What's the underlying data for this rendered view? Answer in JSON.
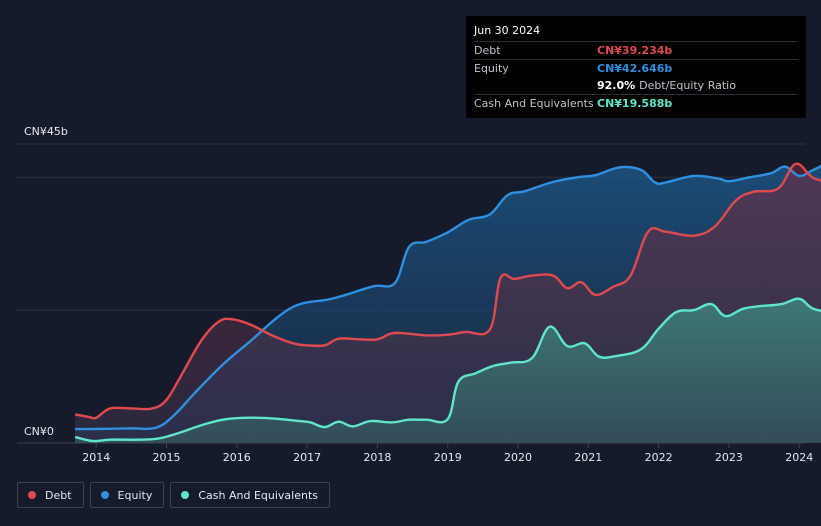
{
  "colors": {
    "background": "#151b2b",
    "debt": "#e04a4f",
    "equity": "#2f8fe0",
    "cash": "#5ee6cc",
    "grid": "#2c3240"
  },
  "tooltip": {
    "date": "Jun 30 2024",
    "rows": [
      {
        "label": "Debt",
        "value": "CN¥39.234b"
      },
      {
        "label": "Equity",
        "value": "CN¥42.646b"
      },
      {
        "label": "",
        "value": "92.0%",
        "extra": "Debt/Equity Ratio"
      },
      {
        "label": "Cash And Equivalents",
        "value": "CN¥19.588b"
      }
    ]
  },
  "legend": [
    {
      "name": "Debt",
      "color": "#e04a4f"
    },
    {
      "name": "Equity",
      "color": "#2f8fe0"
    },
    {
      "name": "Cash And Equivalents",
      "color": "#5ee6cc"
    }
  ],
  "chart_data": {
    "type": "area",
    "ylim": [
      0,
      45
    ],
    "y_tick_labels": {
      "top": "CN¥45b",
      "bottom": "CN¥0"
    },
    "x_ticks": [
      2014,
      2015,
      2016,
      2017,
      2018,
      2019,
      2020,
      2021,
      2022,
      2023,
      2024
    ],
    "xlim": [
      2013.3,
      2024.5
    ],
    "series": [
      {
        "name": "Debt",
        "points": [
          [
            2013.7,
            4.3
          ],
          [
            2013.9,
            3.9
          ],
          [
            2014.0,
            3.8
          ],
          [
            2014.2,
            5.2
          ],
          [
            2014.5,
            5.2
          ],
          [
            2014.8,
            5.2
          ],
          [
            2015.0,
            6.5
          ],
          [
            2015.2,
            10
          ],
          [
            2015.5,
            15.5
          ],
          [
            2015.75,
            18.3
          ],
          [
            2015.95,
            18.6
          ],
          [
            2016.2,
            17.8
          ],
          [
            2016.5,
            16.2
          ],
          [
            2016.8,
            15
          ],
          [
            2017.0,
            14.7
          ],
          [
            2017.25,
            14.7
          ],
          [
            2017.45,
            15.7
          ],
          [
            2017.75,
            15.6
          ],
          [
            2018.0,
            15.6
          ],
          [
            2018.2,
            16.5
          ],
          [
            2018.4,
            16.5
          ],
          [
            2018.7,
            16.2
          ],
          [
            2019.0,
            16.3
          ],
          [
            2019.25,
            16.7
          ],
          [
            2019.6,
            17.1
          ],
          [
            2019.75,
            24.8
          ],
          [
            2019.95,
            24.7
          ],
          [
            2020.2,
            25.2
          ],
          [
            2020.5,
            25.2
          ],
          [
            2020.7,
            23.3
          ],
          [
            2020.9,
            24.2
          ],
          [
            2021.1,
            22.3
          ],
          [
            2021.35,
            23.5
          ],
          [
            2021.6,
            25.2
          ],
          [
            2021.85,
            31.8
          ],
          [
            2022.1,
            31.8
          ],
          [
            2022.5,
            31.2
          ],
          [
            2022.8,
            32.6
          ],
          [
            2023.1,
            36.5
          ],
          [
            2023.35,
            37.8
          ],
          [
            2023.7,
            38.3
          ],
          [
            2023.95,
            42
          ],
          [
            2024.2,
            39.9
          ],
          [
            2024.5,
            39.234
          ]
        ]
      },
      {
        "name": "Equity",
        "points": [
          [
            2013.7,
            2.1
          ],
          [
            2014.0,
            2.1
          ],
          [
            2014.5,
            2.2
          ],
          [
            2014.85,
            2.3
          ],
          [
            2015.1,
            4.1
          ],
          [
            2015.4,
            7.5
          ],
          [
            2015.8,
            11.8
          ],
          [
            2016.2,
            15.4
          ],
          [
            2016.6,
            19.1
          ],
          [
            2016.9,
            20.9
          ],
          [
            2017.3,
            21.6
          ],
          [
            2017.55,
            22.3
          ],
          [
            2017.95,
            23.6
          ],
          [
            2018.25,
            24.1
          ],
          [
            2018.45,
            29.5
          ],
          [
            2018.7,
            30.3
          ],
          [
            2019.0,
            31.7
          ],
          [
            2019.3,
            33.6
          ],
          [
            2019.6,
            34.4
          ],
          [
            2019.85,
            37.3
          ],
          [
            2020.1,
            37.9
          ],
          [
            2020.5,
            39.3
          ],
          [
            2020.85,
            40
          ],
          [
            2021.1,
            40.3
          ],
          [
            2021.45,
            41.5
          ],
          [
            2021.75,
            41.1
          ],
          [
            2021.95,
            39.2
          ],
          [
            2022.1,
            39.2
          ],
          [
            2022.5,
            40.2
          ],
          [
            2022.85,
            39.8
          ],
          [
            2023.0,
            39.4
          ],
          [
            2023.3,
            40
          ],
          [
            2023.6,
            40.6
          ],
          [
            2023.8,
            41.6
          ],
          [
            2024.0,
            40.2
          ],
          [
            2024.2,
            41.1
          ],
          [
            2024.5,
            42.646
          ]
        ]
      },
      {
        "name": "Cash And Equivalents",
        "points": [
          [
            2013.7,
            0.9
          ],
          [
            2013.95,
            0.3
          ],
          [
            2014.2,
            0.5
          ],
          [
            2014.6,
            0.5
          ],
          [
            2014.9,
            0.7
          ],
          [
            2015.2,
            1.6
          ],
          [
            2015.5,
            2.7
          ],
          [
            2015.8,
            3.5
          ],
          [
            2016.1,
            3.8
          ],
          [
            2016.5,
            3.7
          ],
          [
            2016.9,
            3.3
          ],
          [
            2017.05,
            3.1
          ],
          [
            2017.25,
            2.4
          ],
          [
            2017.45,
            3.2
          ],
          [
            2017.65,
            2.5
          ],
          [
            2017.9,
            3.3
          ],
          [
            2018.2,
            3.1
          ],
          [
            2018.45,
            3.5
          ],
          [
            2018.7,
            3.5
          ],
          [
            2019.0,
            3.6
          ],
          [
            2019.15,
            9.2
          ],
          [
            2019.4,
            10.5
          ],
          [
            2019.65,
            11.6
          ],
          [
            2019.9,
            12.1
          ],
          [
            2020.2,
            12.8
          ],
          [
            2020.45,
            17.5
          ],
          [
            2020.7,
            14.6
          ],
          [
            2020.95,
            15
          ],
          [
            2021.15,
            13
          ],
          [
            2021.4,
            13.1
          ],
          [
            2021.75,
            14.1
          ],
          [
            2022.0,
            17.2
          ],
          [
            2022.25,
            19.7
          ],
          [
            2022.5,
            20
          ],
          [
            2022.75,
            20.9
          ],
          [
            2022.95,
            19.1
          ],
          [
            2023.2,
            20.2
          ],
          [
            2023.45,
            20.6
          ],
          [
            2023.75,
            20.9
          ],
          [
            2024.0,
            21.7
          ],
          [
            2024.2,
            20.2
          ],
          [
            2024.5,
            19.588
          ]
        ]
      }
    ]
  }
}
